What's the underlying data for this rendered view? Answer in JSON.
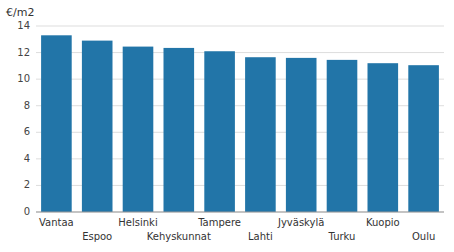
{
  "chart_data": {
    "type": "bar",
    "ylabel": "€/m2",
    "categories": [
      "Vantaa",
      "Espoo",
      "Helsinki",
      "Kehyskunnat",
      "Tampere",
      "Lahti",
      "Jyväskylä",
      "Turku",
      "Kuopio",
      "Oulu"
    ],
    "values": [
      13.3,
      12.9,
      12.45,
      12.35,
      12.1,
      11.65,
      11.6,
      11.45,
      11.2,
      11.05
    ],
    "color": "#2275a8",
    "ylim": [
      0,
      14
    ],
    "yticks": [
      0,
      2,
      4,
      6,
      8,
      10,
      12,
      14
    ],
    "grid": true
  }
}
